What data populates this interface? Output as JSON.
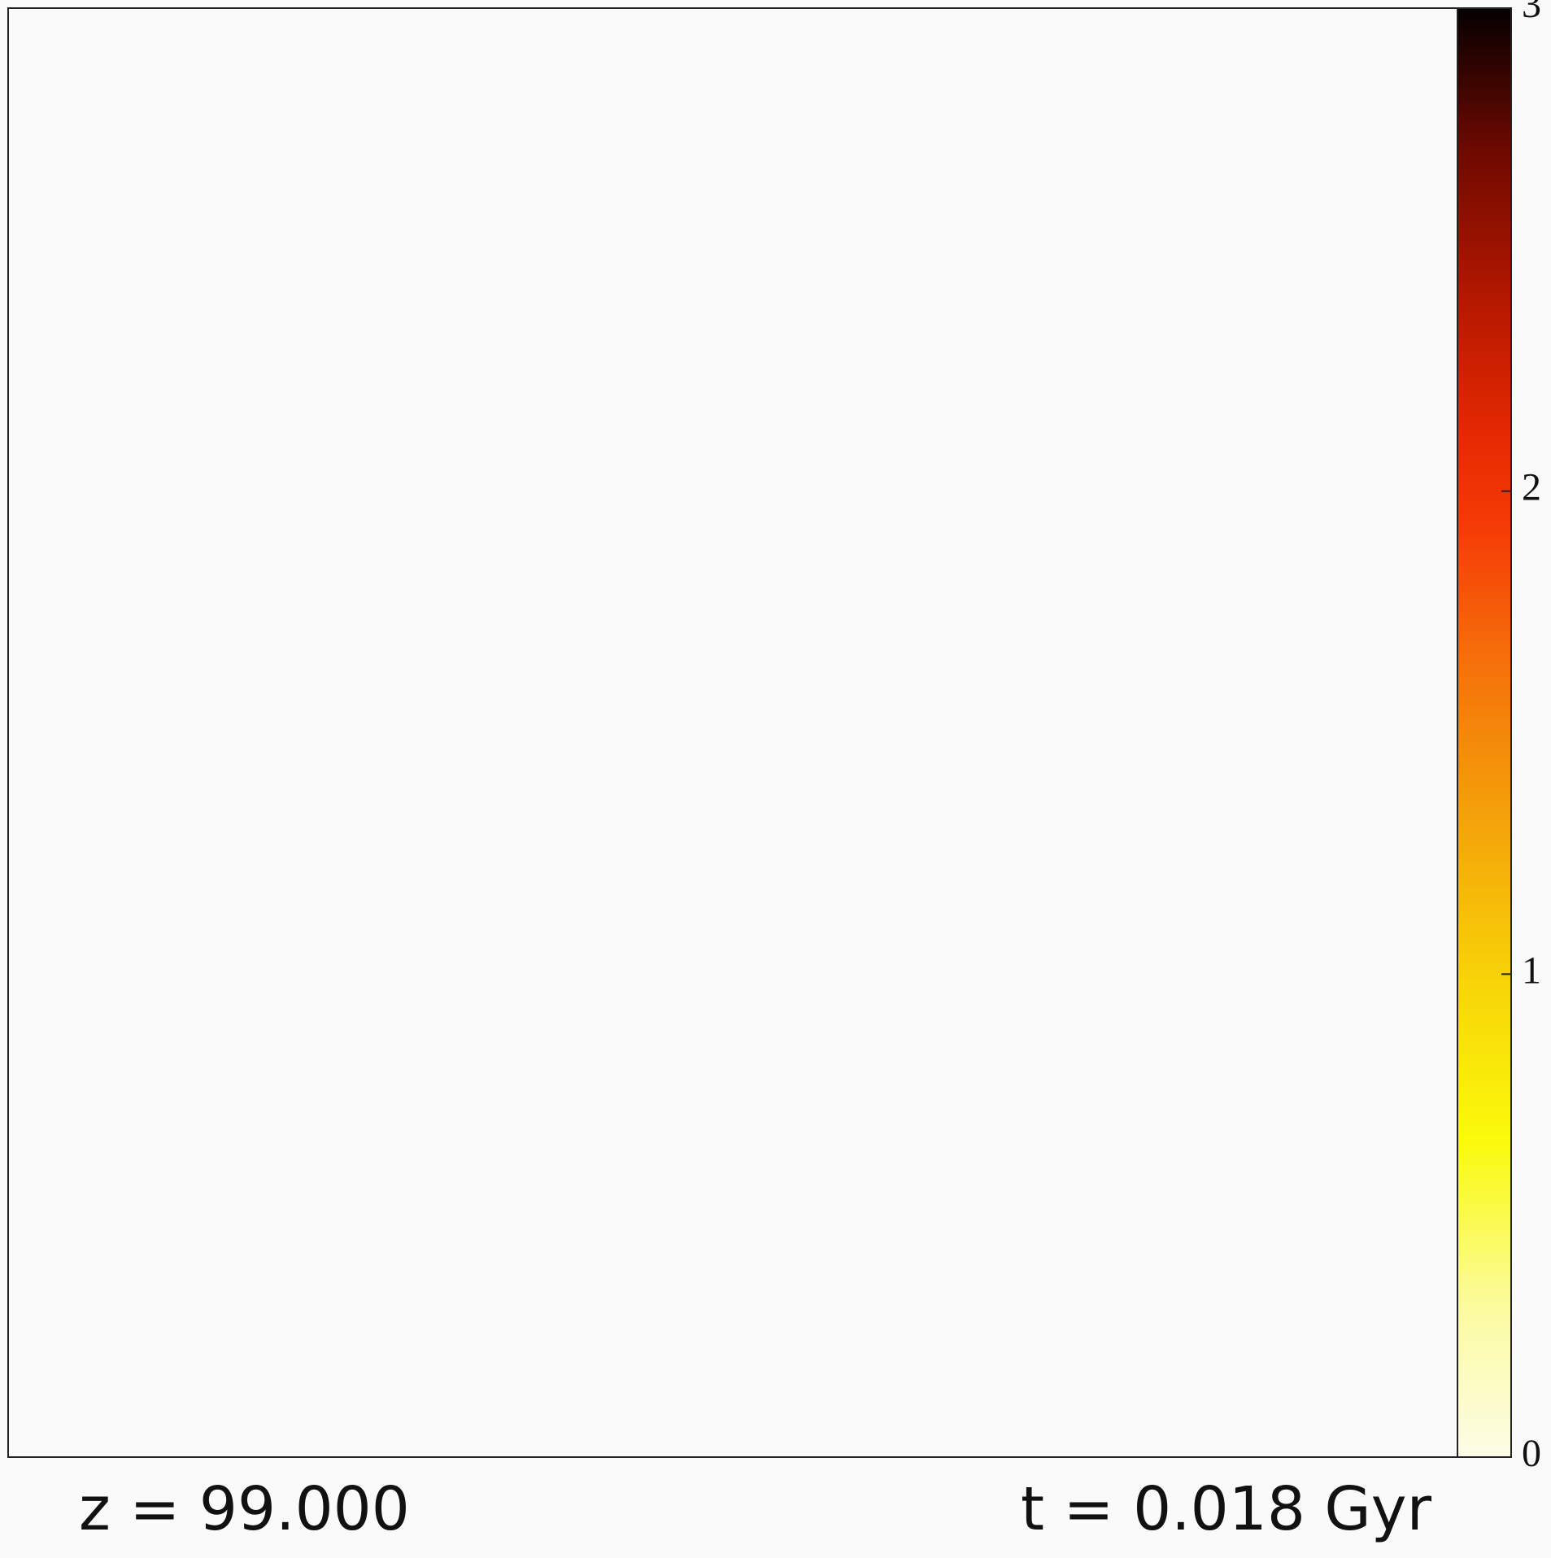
{
  "chart_data": {
    "type": "heatmap",
    "title": "",
    "xlabel": "",
    "ylabel": "",
    "map_values": "uniform (all 0)",
    "map_fill_color": "#fafafa",
    "colorbar": {
      "range": [
        0,
        3
      ],
      "ticks": [
        0,
        1,
        2,
        3
      ],
      "tick_labels": [
        "0",
        "1",
        "2",
        "3"
      ],
      "colormap": "afmhot_r",
      "orientation": "vertical",
      "position": "right"
    }
  },
  "annotations": {
    "redshift": "z = 99.000",
    "time": "t = 0.018 Gyr"
  },
  "colors": {
    "background": "#fafafa",
    "frame": "#222222",
    "text": "#111111"
  }
}
